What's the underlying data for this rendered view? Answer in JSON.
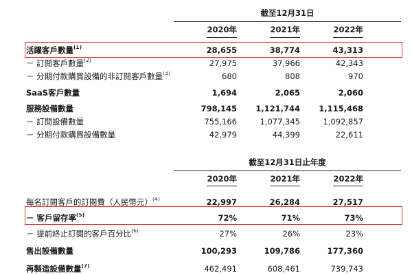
{
  "accent_color": "#e0342a",
  "table1": {
    "period_header": "截至12月31日",
    "years": [
      "2020年",
      "2021年",
      "2022年"
    ],
    "rows": [
      {
        "label": "活躍客戶數量",
        "note": "(1)",
        "values": [
          "28,655",
          "38,774",
          "43,313"
        ],
        "label_bold": true,
        "value_bold": true,
        "highlight": true
      },
      {
        "label": "－ 訂閱客戶數量",
        "note": "(2)",
        "values": [
          "27,975",
          "37,966",
          "42,343"
        ],
        "label_bold": false,
        "value_bold": false,
        "highlight": false
      },
      {
        "label": "－ 分期付款購買設備的非訂閱客戶數量",
        "note": "(3)",
        "values": [
          "680",
          "808",
          "970"
        ],
        "label_bold": false,
        "value_bold": false,
        "highlight": false
      },
      {
        "label": "SaaS客戶數量",
        "note": "",
        "values": [
          "1,694",
          "2,065",
          "2,060"
        ],
        "label_bold": true,
        "value_bold": true,
        "highlight": false
      },
      {
        "label": "服務設備數量",
        "note": "",
        "values": [
          "798,145",
          "1,121,744",
          "1,115,468"
        ],
        "label_bold": true,
        "value_bold": true,
        "highlight": false
      },
      {
        "label": "－ 訂閱設備數量",
        "note": "",
        "values": [
          "755,166",
          "1,077,345",
          "1,092,857"
        ],
        "label_bold": false,
        "value_bold": false,
        "highlight": false
      },
      {
        "label": "－ 分期付款購買設備數量",
        "note": "",
        "values": [
          "42,979",
          "44,399",
          "22,611"
        ],
        "label_bold": false,
        "value_bold": false,
        "highlight": false
      }
    ]
  },
  "table2": {
    "period_header": "截至12月31日止年度",
    "years": [
      "2020年",
      "2021年",
      "2022年"
    ],
    "rows": [
      {
        "label": "每名訂閱客戶的訂閱費（人民幣元）",
        "note": "(4)",
        "values": [
          "22,997",
          "26,284",
          "27,517"
        ],
        "label_bold": false,
        "value_bold": true,
        "highlight": false
      },
      {
        "label": "－ 客戶留存率",
        "note": "(5)",
        "values": [
          "72%",
          "71%",
          "73%"
        ],
        "label_bold": true,
        "value_bold": true,
        "highlight": true
      },
      {
        "label": "－ 提前終止訂閱的客戶百分比",
        "note": "(6)",
        "values": [
          "27%",
          "26%",
          "23%"
        ],
        "label_bold": false,
        "value_bold": false,
        "highlight": false
      },
      {
        "label": "售出設備數量",
        "note": "",
        "values": [
          "100,293",
          "109,786",
          "177,360"
        ],
        "label_bold": true,
        "value_bold": true,
        "highlight": false
      },
      {
        "label": "再製造設備數量",
        "note": "(7)",
        "values": [
          "462,491",
          "608,461",
          "739,743"
        ],
        "label_bold": true,
        "value_bold": false,
        "highlight": false
      }
    ]
  }
}
